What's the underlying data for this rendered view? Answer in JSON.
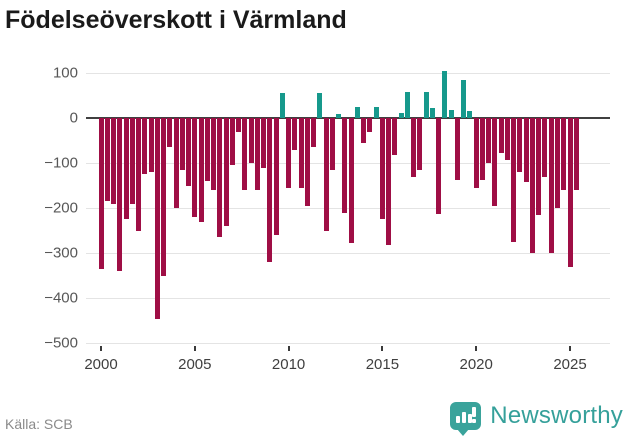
{
  "title": "Födelseöverskott i Värmland",
  "source": "Källa: SCB",
  "logo": {
    "text": "Newsworthy"
  },
  "colors": {
    "negative_bar": "#9f0e45",
    "positive_bar": "#16998c",
    "zero_line": "#404040",
    "gridline": "#e4e4e4",
    "title_text": "#1a1a1a",
    "axis_text": "#575757",
    "source_text": "#8a8a8a",
    "logo_teal": "#3aa39b"
  },
  "chart_data": {
    "type": "bar",
    "title": "Födelseöverskott i Värmland",
    "xlabel": "",
    "ylabel": "",
    "x_start_year": 2000,
    "periods_per_year": 3,
    "x_end_period": "2025-T2",
    "xticks": [
      2000,
      2005,
      2010,
      2015,
      2020,
      2025
    ],
    "yticks": [
      100,
      0,
      -100,
      -200,
      -300,
      -400,
      -500
    ],
    "ylim": [
      -500,
      130
    ],
    "grid": true,
    "legend": "none",
    "values": [
      -335,
      -185,
      -190,
      -340,
      -225,
      -190,
      -250,
      -125,
      -120,
      -445,
      -350,
      -65,
      -200,
      -115,
      -150,
      -220,
      -230,
      -140,
      -160,
      -265,
      -240,
      -105,
      -30,
      -160,
      -100,
      -160,
      -110,
      -320,
      -260,
      56,
      -155,
      -70,
      -155,
      -195,
      -65,
      56,
      -250,
      -115,
      8,
      -210,
      -278,
      25,
      -55,
      -30,
      25,
      -223,
      -282,
      -82,
      10,
      58,
      -130,
      -116,
      57,
      23,
      -213,
      105,
      18,
      -138,
      84,
      16,
      -156,
      -138,
      -100,
      -195,
      -78,
      -93,
      -275,
      -119,
      -141,
      -300,
      -215,
      -130,
      -300,
      -200,
      -160,
      -330,
      -160
    ]
  }
}
